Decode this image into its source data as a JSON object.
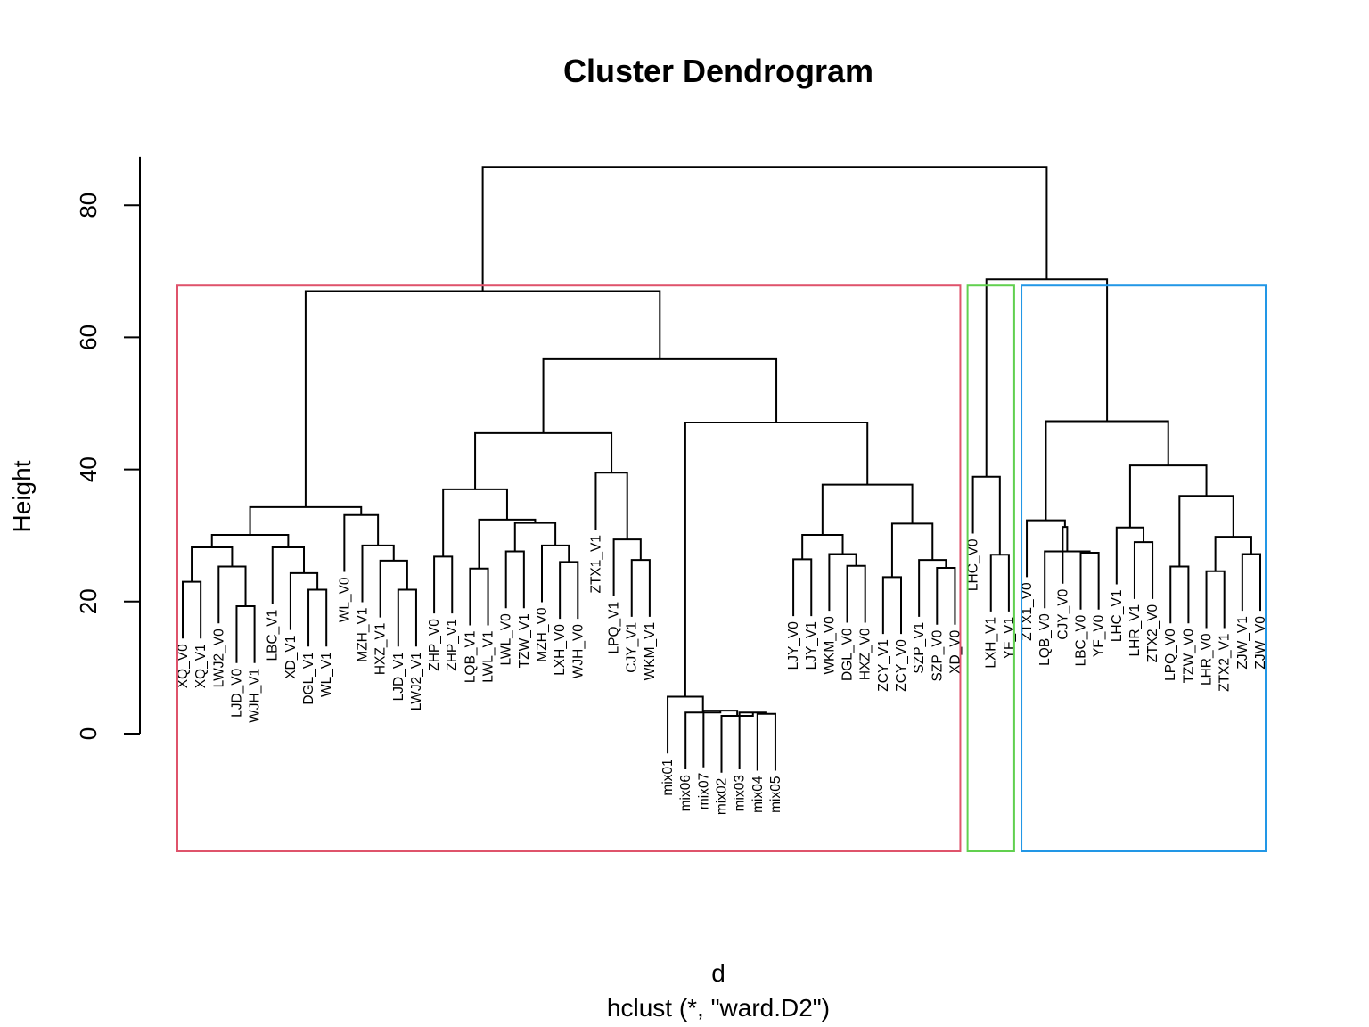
{
  "chart_data": {
    "type": "dendrogram",
    "title": "Cluster Dendrogram",
    "xlabel": "d",
    "subtitle": "hclust (*, \"ward.D2\")",
    "ylabel": "Height",
    "ylim": [
      0,
      88
    ],
    "yticks": [
      0,
      20,
      40,
      60,
      80
    ],
    "grid": false,
    "leaf_order": [
      "XQ_V0",
      "XQ_V1",
      "LWJ2_V0",
      "LJD_V0",
      "WJH_V1",
      "LBC_V1",
      "XD_V1",
      "DGL_V1",
      "WL_V1",
      "WL_V0",
      "MZH_V1",
      "HXZ_V1",
      "LJD_V1",
      "LWJ2_V1",
      "ZHP_V0",
      "ZHP_V1",
      "LQB_V1",
      "LWL_V1",
      "LWL_V0",
      "TZW_V1",
      "MZH_V0",
      "LXH_V0",
      "WJH_V0",
      "ZTX1_V1",
      "LPQ_V1",
      "CJY_V1",
      "WKM_V1",
      "mix01",
      "mix06",
      "mix07",
      "mix02",
      "mix03",
      "mix04",
      "mix05",
      "LJY_V0",
      "LJY_V1",
      "WKM_V0",
      "DGL_V0",
      "HXZ_V0",
      "ZCY_V1",
      "ZCY_V0",
      "SZP_V1",
      "SZP_V0",
      "XD_V0",
      "LHC_V0",
      "LXH_V1",
      "YF_V1",
      "ZTX1_V0",
      "LQB_V0",
      "CJY_V0",
      "LBC_V0",
      "YF_V0",
      "LHC_V1",
      "LHR_V1",
      "ZTX2_V0",
      "LPQ_V0",
      "TZW_V0",
      "LHR_V0",
      "ZTX2_V1",
      "ZJW_V1",
      "ZJW_V0"
    ],
    "merges": [
      {
        "id": "a1",
        "left": "XQ_V0",
        "right": "XQ_V1",
        "height": 23.0
      },
      {
        "id": "a2",
        "left": "LJD_V0",
        "right": "WJH_V1",
        "height": 19.3
      },
      {
        "id": "a3",
        "left": "LWJ2_V0",
        "right": "a2",
        "height": 25.3
      },
      {
        "id": "a4",
        "left": "a1",
        "right": "a3",
        "height": 28.2
      },
      {
        "id": "a5",
        "left": "DGL_V1",
        "right": "WL_V1",
        "height": 21.8
      },
      {
        "id": "a6",
        "left": "XD_V1",
        "right": "a5",
        "height": 24.3
      },
      {
        "id": "a7",
        "left": "LBC_V1",
        "right": "a6",
        "height": 28.2
      },
      {
        "id": "a8",
        "left": "a4",
        "right": "a7",
        "height": 30.1
      },
      {
        "id": "b1",
        "left": "LJD_V1",
        "right": "LWJ2_V1",
        "height": 21.8
      },
      {
        "id": "b2",
        "left": "HXZ_V1",
        "right": "b1",
        "height": 26.2
      },
      {
        "id": "b3",
        "left": "MZH_V1",
        "right": "b2",
        "height": 28.5
      },
      {
        "id": "b4",
        "left": "WL_V0",
        "right": "b3",
        "height": 33.1
      },
      {
        "id": "b5",
        "left": "a8",
        "right": "b4",
        "height": 34.3
      },
      {
        "id": "c1",
        "left": "ZHP_V0",
        "right": "ZHP_V1",
        "height": 26.8
      },
      {
        "id": "c2",
        "left": "LQB_V1",
        "right": "LWL_V1",
        "height": 25.0
      },
      {
        "id": "c3",
        "left": "LWL_V0",
        "right": "TZW_V1",
        "height": 27.6
      },
      {
        "id": "c4",
        "left": "LXH_V0",
        "right": "WJH_V0",
        "height": 26.0
      },
      {
        "id": "c5",
        "left": "MZH_V0",
        "right": "c4",
        "height": 28.5
      },
      {
        "id": "c6",
        "left": "c3",
        "right": "c5",
        "height": 31.9
      },
      {
        "id": "c7",
        "left": "c2",
        "right": "c6",
        "height": 32.4
      },
      {
        "id": "c8",
        "left": "c1",
        "right": "c7",
        "height": 37.0
      },
      {
        "id": "d1",
        "left": "CJY_V1",
        "right": "WKM_V1",
        "height": 26.3
      },
      {
        "id": "d2",
        "left": "LPQ_V1",
        "right": "d1",
        "height": 29.4
      },
      {
        "id": "d3",
        "left": "ZTX1_V1",
        "right": "d2",
        "height": 39.5
      },
      {
        "id": "d4",
        "left": "c8",
        "right": "d3",
        "height": 45.5
      },
      {
        "id": "e1",
        "left": "mix04",
        "right": "mix05",
        "height": 3.0
      },
      {
        "id": "e2",
        "left": "mix03",
        "right": "e1",
        "height": 3.2
      },
      {
        "id": "e3",
        "left": "mix02",
        "right": "e2",
        "height": 2.7
      },
      {
        "id": "e4",
        "left": "mix07",
        "right": "e3",
        "height": 3.5
      },
      {
        "id": "e5",
        "left": "mix06",
        "right": "e4",
        "height": 3.2
      },
      {
        "id": "e6",
        "left": "mix01",
        "right": "e5",
        "height": 5.6
      },
      {
        "id": "f1",
        "left": "LJY_V0",
        "right": "LJY_V1",
        "height": 26.4
      },
      {
        "id": "f2",
        "left": "DGL_V0",
        "right": "HXZ_V0",
        "height": 25.4
      },
      {
        "id": "f3",
        "left": "WKM_V0",
        "right": "f2",
        "height": 27.2
      },
      {
        "id": "f4",
        "left": "f1",
        "right": "f3",
        "height": 30.1
      },
      {
        "id": "f5",
        "left": "ZCY_V1",
        "right": "ZCY_V0",
        "height": 23.7
      },
      {
        "id": "f6",
        "left": "SZP_V0",
        "right": "XD_V0",
        "height": 25.1
      },
      {
        "id": "f7",
        "left": "SZP_V1",
        "right": "f6",
        "height": 26.3
      },
      {
        "id": "f8",
        "left": "f5",
        "right": "f7",
        "height": 31.8
      },
      {
        "id": "f9",
        "left": "f4",
        "right": "f8",
        "height": 37.7
      },
      {
        "id": "f10",
        "left": "e6",
        "right": "f9",
        "height": 47.1
      },
      {
        "id": "g1",
        "left": "d4",
        "right": "f10",
        "height": 56.7
      },
      {
        "id": "g2",
        "left": "b5",
        "right": "g1",
        "height": 67.0
      },
      {
        "id": "h1",
        "left": "YF_V1",
        "right": "LXH_V1",
        "height": 27.1
      },
      {
        "id": "h2",
        "left": "LHC_V0",
        "right": "h1",
        "height": 38.9
      },
      {
        "id": "i1",
        "left": "YF_V0",
        "right": "LBC_V0",
        "height": 27.4
      },
      {
        "id": "i2",
        "left": "LQB_V0",
        "right": "i1",
        "height": 27.6
      },
      {
        "id": "i3",
        "left": "CJY_V0",
        "right": "i2",
        "height": 31.3
      },
      {
        "id": "i4",
        "left": "ZTX1_V0",
        "right": "i3",
        "height": 32.3
      },
      {
        "id": "j1",
        "left": "LHR_V1",
        "right": "ZTX2_V0",
        "height": 29.0
      },
      {
        "id": "j2",
        "left": "LHC_V1",
        "right": "j1",
        "height": 31.2
      },
      {
        "id": "j3",
        "left": "LPQ_V0",
        "right": "TZW_V0",
        "height": 25.3
      },
      {
        "id": "j4",
        "left": "LHR_V0",
        "right": "ZTX2_V1",
        "height": 24.6
      },
      {
        "id": "j5",
        "left": "ZJW_V1",
        "right": "ZJW_V0",
        "height": 27.2
      },
      {
        "id": "j6",
        "left": "j4",
        "right": "j5",
        "height": 29.8
      },
      {
        "id": "j7",
        "left": "j3",
        "right": "j6",
        "height": 36.0
      },
      {
        "id": "j8",
        "left": "j2",
        "right": "j7",
        "height": 40.6
      },
      {
        "id": "k1",
        "left": "i4",
        "right": "j8",
        "height": 47.3
      },
      {
        "id": "k2",
        "left": "h2",
        "right": "k1",
        "height": 68.8
      },
      {
        "id": "root",
        "left": "g2",
        "right": "k2",
        "height": 85.8
      }
    ],
    "cluster_boxes": [
      {
        "from": "XQ_V0",
        "to": "XD_V0",
        "color": "#DF536B"
      },
      {
        "from": "LHC_V0",
        "to": "YF_V1",
        "color": "#61D04F"
      },
      {
        "from": "ZTX1_V0",
        "to": "ZJW_V0",
        "color": "#2297E6"
      }
    ]
  }
}
